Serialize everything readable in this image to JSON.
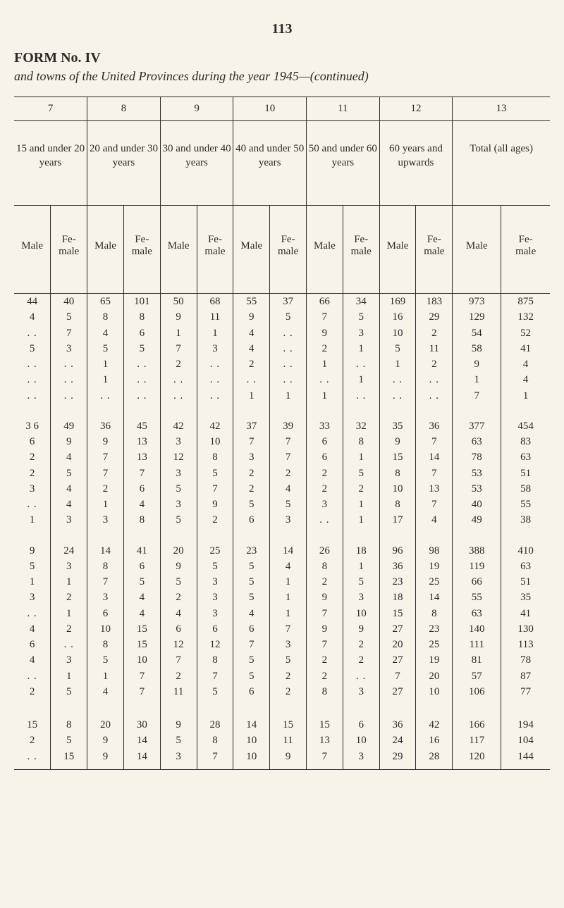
{
  "page_number": "113",
  "form_title": "FORM No. IV",
  "subtitle": "and towns of the United Provinces during the year 1945—(continued)",
  "col_numbers": [
    "7",
    "8",
    "9",
    "10",
    "11",
    "12",
    "13"
  ],
  "age_headers": [
    "15 and under 20 years",
    "20 and under 30 years",
    "30 and under 40 years",
    "40 and under 50 years",
    "50 and under 60 years",
    "60 years and upwards",
    "Total (all ages)"
  ],
  "mf_labels": {
    "male": "Male",
    "female": "Fe-\nmale"
  },
  "dots": ". .",
  "blocks": [
    [
      [
        "44",
        "40",
        "65",
        "101",
        "50",
        "68",
        "55",
        "37",
        "66",
        "34",
        "169",
        "183",
        "973",
        "875"
      ],
      [
        "4",
        "5",
        "8",
        "8",
        "9",
        "11",
        "9",
        "5",
        "7",
        "5",
        "16",
        "29",
        "129",
        "132"
      ],
      [
        "..",
        "7",
        "4",
        "6",
        "1",
        "1",
        "4",
        "..",
        "9",
        "3",
        "10",
        "2",
        "54",
        "52"
      ],
      [
        "5",
        "3",
        "5",
        "5",
        "7",
        "3",
        "4",
        "..",
        "2",
        "1",
        "5",
        "11",
        "58",
        "41"
      ],
      [
        "..",
        "..",
        "1",
        "..",
        "2",
        "..",
        "2",
        "..",
        "1",
        "..",
        "1",
        "2",
        "9",
        "4"
      ],
      [
        "..",
        "..",
        "1",
        "..",
        "..",
        "..",
        "..",
        "..",
        "..",
        "1",
        "..",
        "..",
        "1",
        "4"
      ],
      [
        "..",
        "..",
        "..",
        "..",
        "..",
        "..",
        "1",
        "1",
        "1",
        "..",
        "..",
        "..",
        "7",
        "1"
      ]
    ],
    [
      [
        "3 6",
        "49",
        "36",
        "45",
        "42",
        "42",
        "37",
        "39",
        "33",
        "32",
        "35",
        "36",
        "377",
        "454"
      ],
      [
        "6",
        "9",
        "9",
        "13",
        "3",
        "10",
        "7",
        "7",
        "6",
        "8",
        "9",
        "7",
        "63",
        "83"
      ],
      [
        "2",
        "4",
        "7",
        "13",
        "12",
        "8",
        "3",
        "7",
        "6",
        "1",
        "15",
        "14",
        "78",
        "63"
      ],
      [
        "2",
        "5",
        "7",
        "7",
        "3",
        "5",
        "2",
        "2",
        "2",
        "5",
        "8",
        "7",
        "53",
        "51"
      ],
      [
        "3",
        "4",
        "2",
        "6",
        "5",
        "7",
        "2",
        "4",
        "2",
        "2",
        "10",
        "13",
        "53",
        "58"
      ],
      [
        "..",
        "4",
        "1",
        "4",
        "3",
        "9",
        "5",
        "5",
        "3",
        "1",
        "8",
        "7",
        "40",
        "55"
      ],
      [
        "1",
        "3",
        "3",
        "8",
        "5",
        "2",
        "6",
        "3",
        "..",
        "1",
        "17",
        "4",
        "49",
        "38"
      ]
    ],
    [
      [
        "9",
        "24",
        "14",
        "41",
        "20",
        "25",
        "23",
        "14",
        "26",
        "18",
        "96",
        "98",
        "388",
        "410"
      ],
      [
        "5",
        "3",
        "8",
        "6",
        "9",
        "5",
        "5",
        "4",
        "8",
        "1",
        "36",
        "19",
        "119",
        "63"
      ],
      [
        "1",
        "1",
        "7",
        "5",
        "5",
        "3",
        "5",
        "1",
        "2",
        "5",
        "23",
        "25",
        "66",
        "51"
      ],
      [
        "3",
        "2",
        "3",
        "4",
        "2",
        "3",
        "5",
        "1",
        "9",
        "3",
        "18",
        "14",
        "55",
        "35"
      ],
      [
        "..",
        "1",
        "6",
        "4",
        "4",
        "3",
        "4",
        "1",
        "7",
        "10",
        "15",
        "8",
        "63",
        "41"
      ],
      [
        "4",
        "2",
        "10",
        "15",
        "6",
        "6",
        "6",
        "7",
        "9",
        "9",
        "27",
        "23",
        "140",
        "130"
      ],
      [
        "6",
        "..",
        "8",
        "15",
        "12",
        "12",
        "7",
        "3",
        "7",
        "2",
        "20",
        "25",
        "111",
        "113"
      ],
      [
        "4",
        "3",
        "5",
        "10",
        "7",
        "8",
        "5",
        "5",
        "2",
        "2",
        "27",
        "19",
        "81",
        "78"
      ],
      [
        "..",
        "1",
        "1",
        "7",
        "2",
        "7",
        "5",
        "2",
        "2",
        "..",
        "7",
        "20",
        "57",
        "87"
      ],
      [
        "2",
        "5",
        "4",
        "7",
        "11",
        "5",
        "6",
        "2",
        "8",
        "3",
        "27",
        "10",
        "106",
        "77"
      ]
    ],
    [
      [
        "15",
        "8",
        "20",
        "30",
        "9",
        "28",
        "14",
        "15",
        "15",
        "6",
        "36",
        "42",
        "166",
        "194"
      ],
      [
        "2",
        "5",
        "9",
        "14",
        "5",
        "8",
        "10",
        "11",
        "13",
        "10",
        "24",
        "16",
        "117",
        "104"
      ],
      [
        "..",
        "15",
        "9",
        "14",
        "3",
        "7",
        "10",
        "9",
        "7",
        "3",
        "29",
        "28",
        "120",
        "144"
      ]
    ]
  ]
}
